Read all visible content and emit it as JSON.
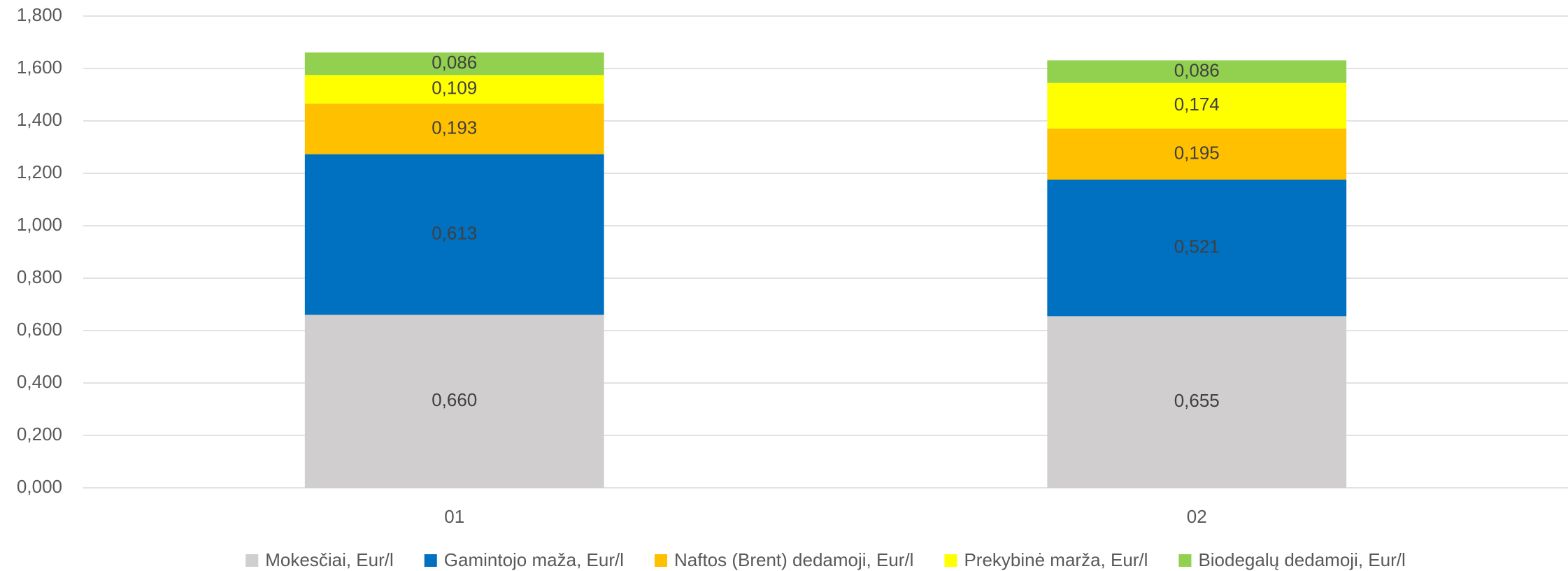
{
  "chart_data": {
    "type": "stacked_bar",
    "categories": [
      "01",
      "02"
    ],
    "series": [
      {
        "name": "Mokesčiai, Eur/l",
        "color": "#d0cece",
        "values": [
          0.66,
          0.655
        ],
        "value_labels": [
          "0,660",
          "0,655"
        ]
      },
      {
        "name": "Gamintojo maža, Eur/l",
        "color": "#0070c0",
        "values": [
          0.613,
          0.521
        ],
        "value_labels": [
          "0,613",
          "0,521"
        ]
      },
      {
        "name": "Naftos (Brent) dedamoji, Eur/l",
        "color": "#ffc000",
        "values": [
          0.193,
          0.195
        ],
        "value_labels": [
          "0,193",
          "0,195"
        ]
      },
      {
        "name": "Prekybinė marža, Eur/l",
        "color": "#ffff00",
        "values": [
          0.109,
          0.174
        ],
        "value_labels": [
          "0,109",
          "0,174"
        ]
      },
      {
        "name": "Biodegalų dedamoji, Eur/l",
        "color": "#92d050",
        "values": [
          0.086,
          0.086
        ],
        "value_labels": [
          "0,086",
          "0,086"
        ]
      }
    ],
    "ylim": [
      0,
      1.8
    ],
    "yticks": [
      {
        "value": 0,
        "label": "0,000"
      },
      {
        "value": 0.2,
        "label": "0,200"
      },
      {
        "value": 0.4,
        "label": "0,400"
      },
      {
        "value": 0.6,
        "label": "0,600"
      },
      {
        "value": 0.8,
        "label": "0,800"
      },
      {
        "value": 1.0,
        "label": "1,000"
      },
      {
        "value": 1.2,
        "label": "1,200"
      },
      {
        "value": 1.4,
        "label": "1,400"
      },
      {
        "value": 1.6,
        "label": "1,600"
      },
      {
        "value": 1.8,
        "label": "1,800"
      }
    ],
    "grid": true,
    "legend": "bottom"
  }
}
